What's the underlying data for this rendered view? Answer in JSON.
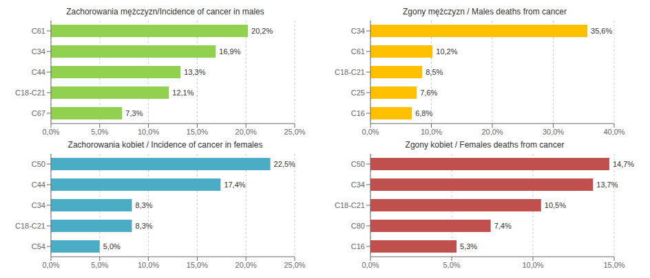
{
  "chart_data": [
    {
      "type": "bar",
      "orientation": "horizontal",
      "title": "Zachorowania mężczyzn/Incidence of cancer in males",
      "categories": [
        "C61",
        "C34",
        "C44",
        "C18-C21",
        "C67"
      ],
      "values": [
        20.2,
        16.9,
        13.3,
        12.1,
        7.3
      ],
      "value_labels": [
        "20,2%",
        "16,9%",
        "13,3%",
        "12,1%",
        "7,3%"
      ],
      "color": "#92D050",
      "xlim": [
        0,
        25
      ],
      "xticks": [
        {
          "value": 0,
          "label": "0,0%"
        },
        {
          "value": 5,
          "label": "5,0%"
        },
        {
          "value": 10,
          "label": "10,0%"
        },
        {
          "value": 15,
          "label": "15,0%"
        },
        {
          "value": 20,
          "label": "20,0%"
        },
        {
          "value": 25,
          "label": "25,0%"
        }
      ],
      "grid": "x",
      "data_labels": true
    },
    {
      "type": "bar",
      "orientation": "horizontal",
      "title": "Zgony mężczyzn / Males deaths from cancer",
      "categories": [
        "C34",
        "C61",
        "C18-C21",
        "C25",
        "C16"
      ],
      "values": [
        35.6,
        10.2,
        8.5,
        7.6,
        6.8
      ],
      "value_labels": [
        "35,6%",
        "10,2%",
        "8,5%",
        "7,6%",
        "6,8%"
      ],
      "color": "#FFC000",
      "xlim": [
        0,
        40
      ],
      "xticks": [
        {
          "value": 0,
          "label": "0,0%"
        },
        {
          "value": 10,
          "label": "10,0%"
        },
        {
          "value": 20,
          "label": "20,0%"
        },
        {
          "value": 30,
          "label": "30,0%"
        },
        {
          "value": 40,
          "label": "40,0%"
        }
      ],
      "grid": "x",
      "data_labels": true
    },
    {
      "type": "bar",
      "orientation": "horizontal",
      "title": "Zachorowania kobiet / Incidence of cancer in females",
      "categories": [
        "C50",
        "C44",
        "C34",
        "C18-C21",
        "C54"
      ],
      "values": [
        22.5,
        17.4,
        8.3,
        8.3,
        5.0
      ],
      "value_labels": [
        "22,5%",
        "17,4%",
        "8,3%",
        "8,3%",
        "5,0%"
      ],
      "color": "#4BACC6",
      "xlim": [
        0,
        25
      ],
      "xticks": [
        {
          "value": 0,
          "label": "0,0%"
        },
        {
          "value": 5,
          "label": "5,0%"
        },
        {
          "value": 10,
          "label": "10,0%"
        },
        {
          "value": 15,
          "label": "15,0%"
        },
        {
          "value": 20,
          "label": "20,0%"
        },
        {
          "value": 25,
          "label": "25,0%"
        }
      ],
      "grid": "x",
      "data_labels": true
    },
    {
      "type": "bar",
      "orientation": "horizontal",
      "title": "Zgony kobiet / Females deaths from cancer",
      "categories": [
        "C50",
        "C34",
        "C18-C21",
        "C80",
        "C16"
      ],
      "values": [
        14.7,
        13.7,
        10.5,
        7.4,
        5.3
      ],
      "value_labels": [
        "14,7%",
        "13,7%",
        "10,5%",
        "7,4%",
        "5,3%"
      ],
      "color": "#C0504D",
      "xlim": [
        0,
        15
      ],
      "xticks": [
        {
          "value": 0,
          "label": "0,0%"
        },
        {
          "value": 5,
          "label": "5,0%"
        },
        {
          "value": 10,
          "label": "10,0%"
        },
        {
          "value": 15,
          "label": "15,0%"
        }
      ],
      "grid": "x",
      "data_labels": true
    }
  ]
}
